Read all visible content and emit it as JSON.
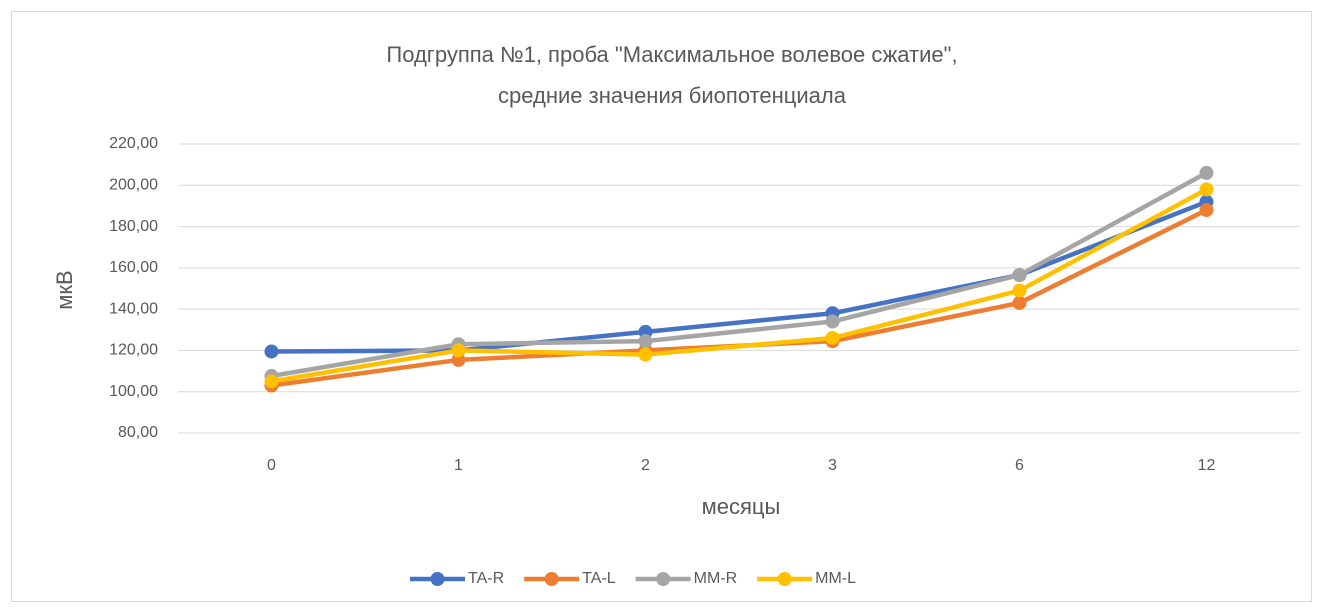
{
  "chart_data": {
    "type": "line",
    "title": [
      "Подгруппа №1, проба \"Максимальное волевое сжатие\",",
      "средние значения биопотенциала"
    ],
    "y_label": "мкВ",
    "x_label": "месяцы",
    "categories": [
      "0",
      "1",
      "2",
      "3",
      "6",
      "12"
    ],
    "ylim": [
      80,
      220
    ],
    "yticks": [
      {
        "value": 80,
        "label": "80,00"
      },
      {
        "value": 100,
        "label": "100,00"
      },
      {
        "value": 120,
        "label": "120,00"
      },
      {
        "value": 140,
        "label": "140,00"
      },
      {
        "value": 160,
        "label": "160,00"
      },
      {
        "value": 180,
        "label": "180,00"
      },
      {
        "value": 200,
        "label": "200,00"
      },
      {
        "value": 220,
        "label": "220,00"
      }
    ],
    "grid": true,
    "legend": "bottom",
    "series": [
      {
        "name": "TA-R",
        "color": "#4472c4",
        "values": [
          119.5,
          120,
          129,
          138,
          156.5,
          192
        ]
      },
      {
        "name": "TA-L",
        "color": "#ed7d31",
        "values": [
          103,
          115.4,
          120,
          124.5,
          143,
          188
        ]
      },
      {
        "name": "MM-R",
        "color": "#a5a5a5",
        "values": [
          107.6,
          123,
          124.5,
          134,
          156.5,
          206
        ]
      },
      {
        "name": "MM-L",
        "color": "#ffc000",
        "values": [
          105,
          120,
          118,
          126,
          149,
          198
        ]
      }
    ]
  }
}
